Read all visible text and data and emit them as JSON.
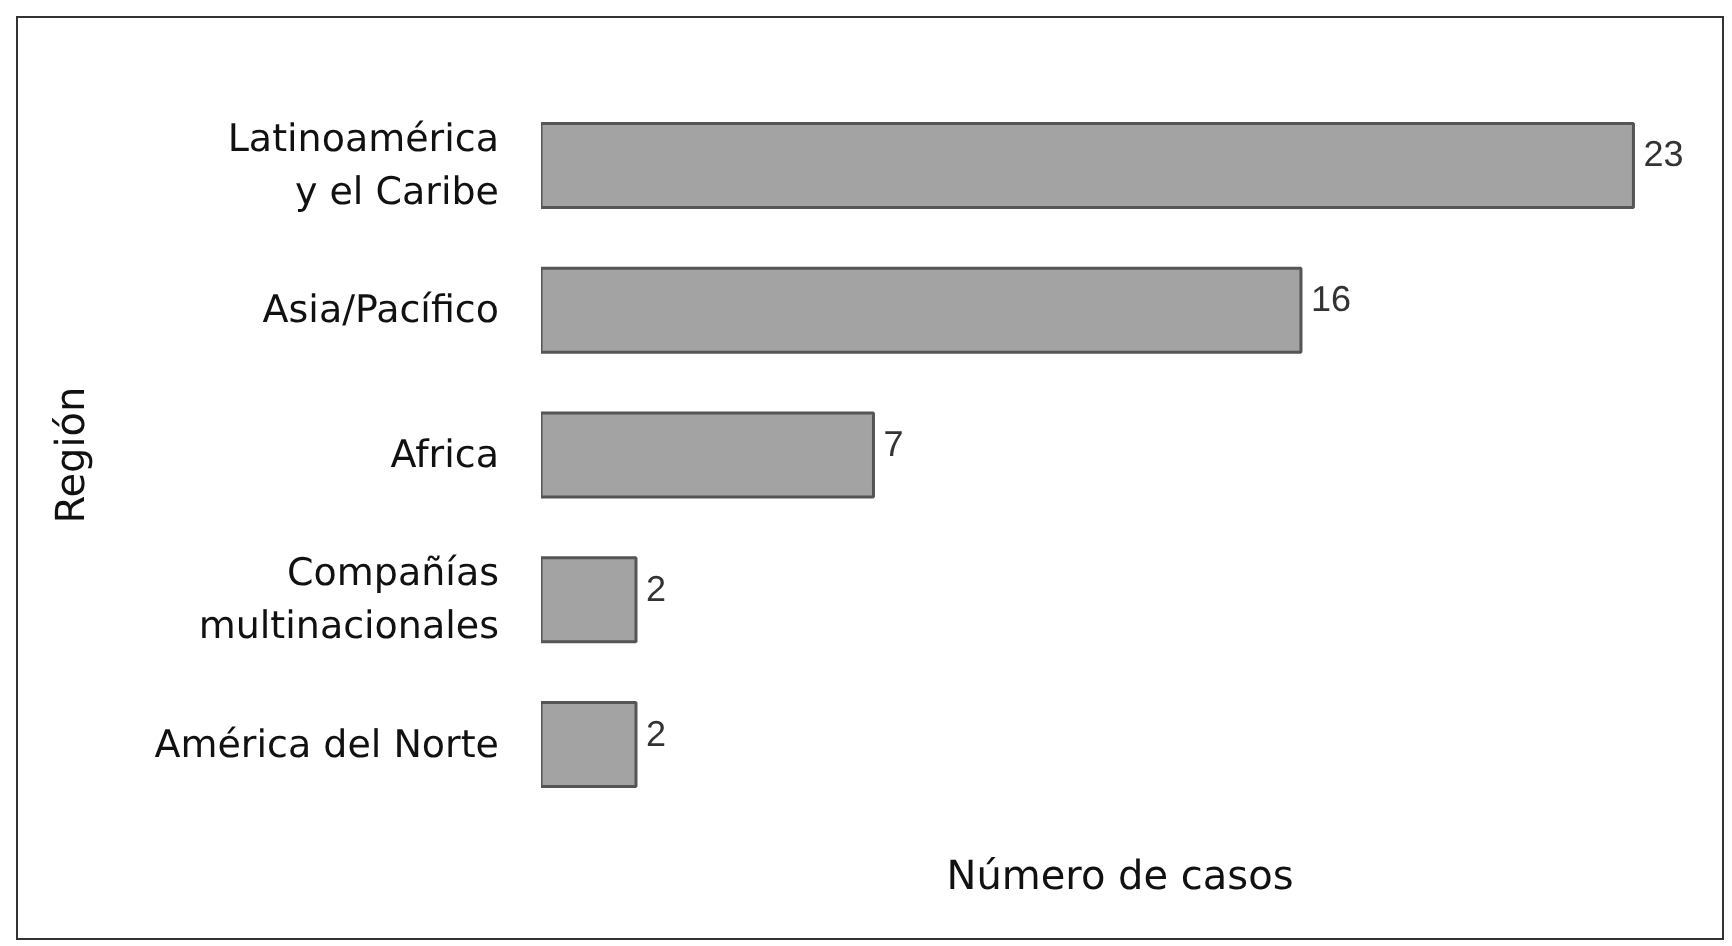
{
  "chart_data": {
    "type": "bar",
    "orientation": "horizontal",
    "categories": [
      "Latinoamérica\ny el Caribe",
      "Asia/Pacífico",
      "Africa",
      "Compañías\nmultinacionales",
      "América del Norte"
    ],
    "values": [
      23,
      16,
      7,
      2,
      2
    ],
    "color": "#a3a3a3",
    "xlabel": "Número de casos",
    "ylabel": "Región",
    "data_labels": true,
    "tick_labels": "y",
    "grid": false
  }
}
